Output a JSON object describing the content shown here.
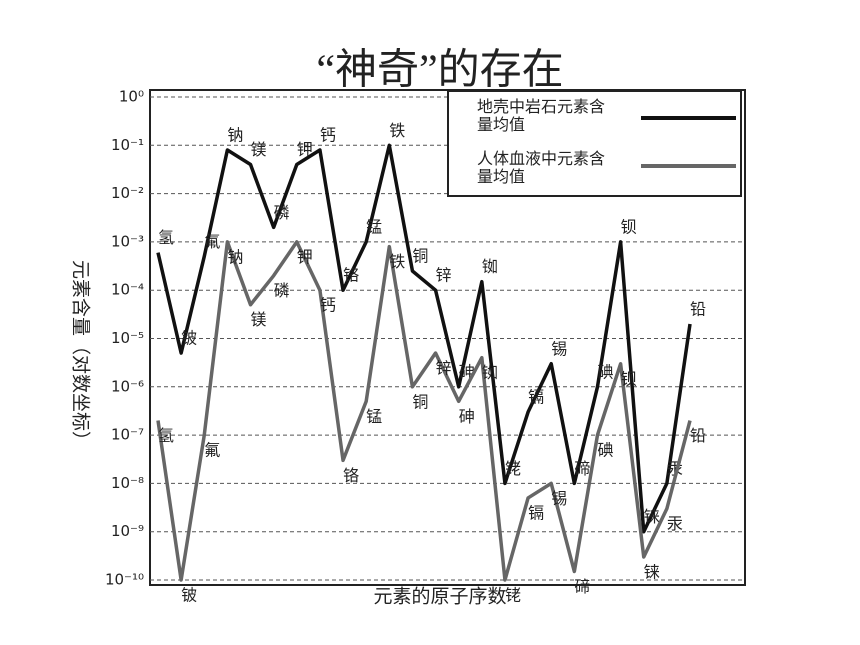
{
  "chart_data": {
    "type": "line",
    "title": "“神奇”的存在",
    "x_label": "元素的原子序数",
    "y_label": "元素含量（对数坐标）",
    "categories": [
      "氢",
      "铍",
      "氟",
      "钠",
      "镁",
      "磷",
      "钾",
      "钙",
      "铬",
      "锰",
      "铁",
      "铜",
      "锌",
      "砷",
      "铷",
      "铑",
      "镉",
      "锡",
      "碲",
      "碘",
      "钡",
      "铼",
      "汞",
      "铅"
    ],
    "series": [
      {
        "name": "地壳中岩石元素含量均值",
        "color": "#111111",
        "values": [
          0.0006,
          5e-06,
          0.0005,
          0.08,
          0.04,
          0.002,
          0.04,
          0.08,
          0.0001,
          0.001,
          0.1,
          0.00025,
          0.0001,
          1e-06,
          0.00015,
          1e-08,
          3e-07,
          3e-06,
          1e-08,
          1e-06,
          0.001,
          1e-09,
          1e-08,
          2e-05
        ]
      },
      {
        "name": "人体血液中元素含量均值",
        "color": "#666666",
        "values": [
          2e-07,
          1e-10,
          1e-07,
          0.001,
          5e-05,
          0.0002,
          0.001,
          0.0001,
          3e-08,
          5e-07,
          0.0008,
          1e-06,
          5e-06,
          5e-07,
          4e-06,
          1e-10,
          5e-09,
          1e-08,
          1.5e-10,
          1e-07,
          3e-06,
          3e-10,
          3e-09,
          2e-07
        ]
      }
    ],
    "yscale": "log",
    "ylim": [
      1e-10,
      1
    ],
    "yticks": [
      {
        "value": 1,
        "label": "10⁰"
      },
      {
        "value": 0.1,
        "label": "10⁻¹"
      },
      {
        "value": 0.01,
        "label": "10⁻²"
      },
      {
        "value": 0.001,
        "label": "10⁻³"
      },
      {
        "value": 0.0001,
        "label": "10⁻⁴"
      },
      {
        "value": 1e-05,
        "label": "10⁻⁵"
      },
      {
        "value": 1e-06,
        "label": "10⁻⁶"
      },
      {
        "value": 1e-07,
        "label": "10⁻⁷"
      },
      {
        "value": 1e-08,
        "label": "10⁻⁸"
      },
      {
        "value": 1e-09,
        "label": "10⁻⁹"
      },
      {
        "value": 1e-10,
        "label": "10⁻¹⁰"
      }
    ],
    "grid": true,
    "legend": "upper right"
  }
}
